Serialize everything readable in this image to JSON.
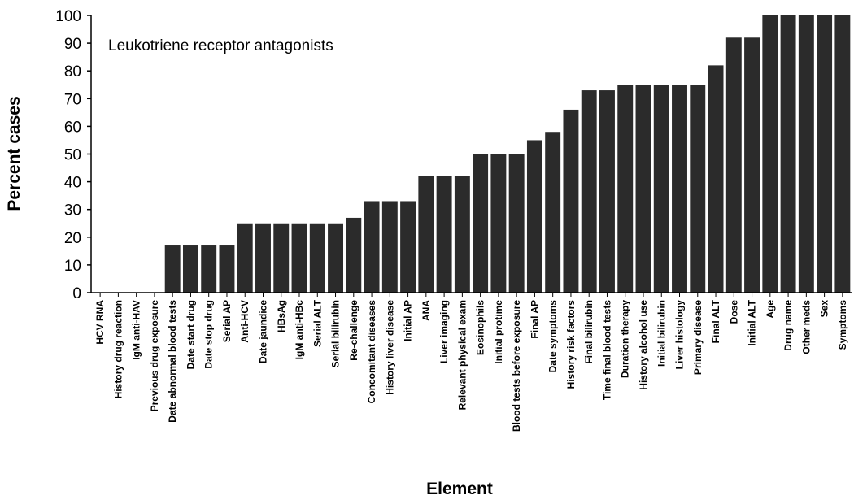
{
  "chart_data": {
    "type": "bar",
    "title": "",
    "annotation": "Leukotriene receptor antagonists",
    "xlabel": "Element",
    "ylabel": "Percent cases",
    "ylim": [
      0,
      100
    ],
    "yticks": [
      0,
      10,
      20,
      30,
      40,
      50,
      60,
      70,
      80,
      90,
      100
    ],
    "grid": false,
    "legend": "none",
    "bar_color": "#2b2b2b",
    "categories": [
      "HCV RNA",
      "History drug reaction",
      "IgM anti-HAV",
      "Previous drug exposure",
      "Date abnormal blood tests",
      "Date start drug",
      "Date stop drug",
      "Serial AP",
      "Anti-HCV",
      "Date jaundice",
      "HBsAg",
      "IgM anti-HBc",
      "Serial ALT",
      "Serial bilirubin",
      "Re-challenge",
      "Concomitant diseases",
      "History liver disease",
      "Initial AP",
      "ANA",
      "Liver imaging",
      "Relevant physical exam",
      "Eosinophils",
      "Initial protime",
      "Blood tests before exposure",
      "Final AP",
      "Date symptoms",
      "History risk factors",
      "Final bilirubin",
      "Time final blood tests",
      "Duration therapy",
      "History alcohol use",
      "Initial bilirubin",
      "Liver histology",
      "Primary disease",
      "Final ALT",
      "Dose",
      "Initial ALT",
      "Age",
      "Drug name",
      "Other meds",
      "Sex",
      "Symptoms"
    ],
    "values": [
      0,
      0,
      0,
      0,
      17,
      17,
      17,
      17,
      25,
      25,
      25,
      25,
      25,
      25,
      27,
      33,
      33,
      33,
      42,
      42,
      42,
      50,
      50,
      50,
      55,
      58,
      66,
      73,
      73,
      75,
      75,
      75,
      75,
      75,
      82,
      92,
      92,
      100,
      100,
      100,
      100,
      100
    ]
  }
}
